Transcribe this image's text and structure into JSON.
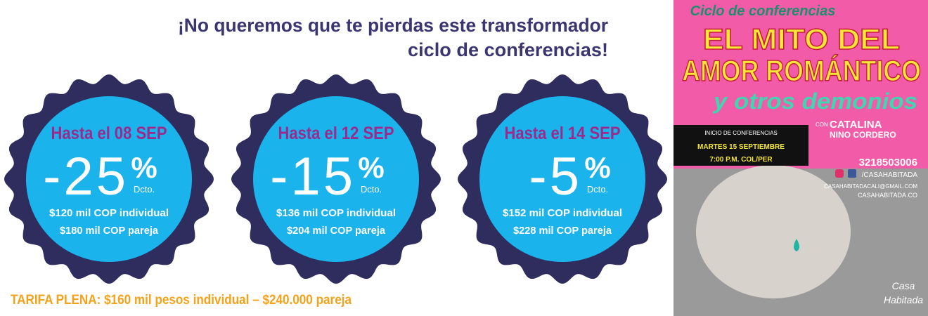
{
  "header": {
    "line1": "¡No queremos que te pierdas este transformador",
    "line2": "ciclo de conferencias!"
  },
  "offers": [
    {
      "deadline": "Hasta el 08 SEP",
      "discount": "-25",
      "percent": "%",
      "label": "Dcto.",
      "individual": "$120 mil COP individual",
      "couple": "$180 mil COP pareja"
    },
    {
      "deadline": "Hasta el 12 SEP",
      "discount": "-15",
      "percent": "%",
      "label": "Dcto.",
      "individual": "$136 mil COP individual",
      "couple": "$204 mil COP pareja"
    },
    {
      "deadline": "Hasta el 14 SEP",
      "discount": "-5",
      "percent": "%",
      "label": "Dcto.",
      "individual": "$152 mil COP individual",
      "couple": "$228 mil COP pareja"
    }
  ],
  "footer": "TARIFA PLENA:  $160 mil pesos individual – $240.000 pareja",
  "poster": {
    "series": "Ciclo de conferencias",
    "title1": "EL MITO DEL",
    "title2": "AMOR ROMÁNTICO",
    "subtitle": "y otros demonios",
    "with": "CON",
    "speaker1": "CATALINA",
    "speaker2": "NINO CORDERO",
    "start": "INICIO DE CONFERENCIAS",
    "date": "MARTES 15 SEPTIEMBRE",
    "time": "7:00 P.M. COL/PER",
    "phone": "3218503006",
    "social": "/CASAHABITADA",
    "email": "CASAHABITADACALI@GMAIL.COM",
    "web": "CASAHABITADA.CO",
    "brand1": "Casa",
    "brand2": "Habitada"
  }
}
